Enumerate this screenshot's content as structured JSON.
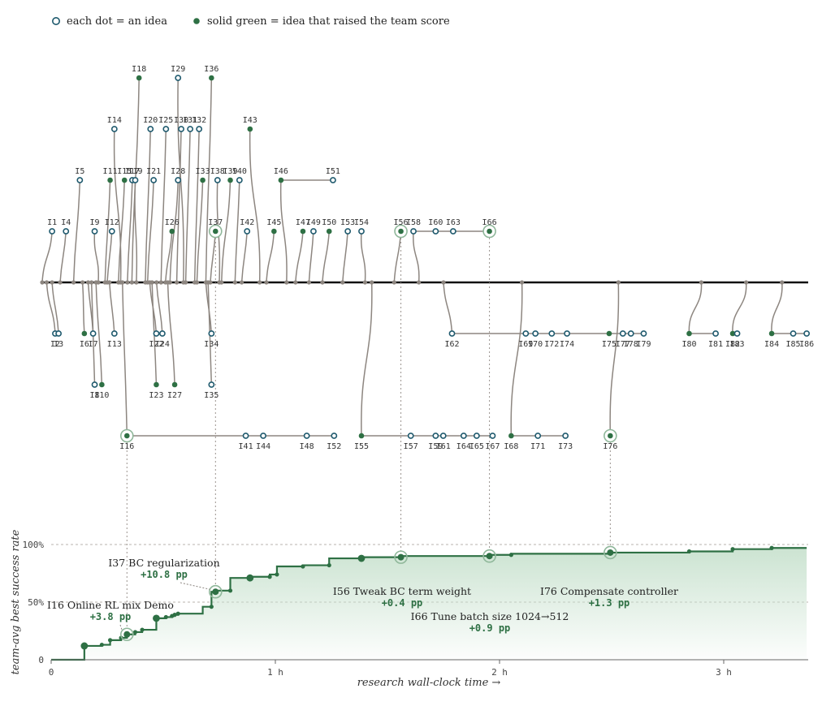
{
  "legend": {
    "hollow_label": "each dot = an idea",
    "solid_label": "solid green = idea that raised the team score"
  },
  "colors": {
    "green": "#2e7044",
    "hollow_stroke": "#1f5a6e",
    "branch": "#8d8680",
    "trunk": "#111111",
    "area_top": "#c9e2cf"
  },
  "chart_data": {
    "type": "line",
    "title": "",
    "xlabel": "research wall-clock time →",
    "ylabel": "team-avg best success rate",
    "xlim": [
      0,
      3.37
    ],
    "ylim": [
      0,
      100
    ],
    "x_unit": "h",
    "x_ticks": [
      {
        "value": 0,
        "label": "0"
      },
      {
        "value": 1,
        "label": "1 h"
      },
      {
        "value": 2,
        "label": "2 h"
      },
      {
        "value": 3,
        "label": "3 h"
      }
    ],
    "y_ticks": [
      {
        "value": 0,
        "label": "0"
      },
      {
        "value": 50,
        "label": "50%"
      },
      {
        "value": 100,
        "label": "100%"
      }
    ],
    "grid": "dotted horizontal at 50% and 100%",
    "legend_position": "top-left",
    "series": [
      {
        "name": "",
        "x": [
          0,
          0.148,
          0.148,
          0.226,
          0.226,
          0.263,
          0.263,
          0.312,
          0.312,
          0.338,
          0.338,
          0.375,
          0.375,
          0.406,
          0.406,
          0.469,
          0.469,
          0.512,
          0.512,
          0.539,
          0.539,
          0.551,
          0.551,
          0.566,
          0.566,
          0.676,
          0.676,
          0.715,
          0.715,
          0.733,
          0.733,
          0.799,
          0.799,
          0.887,
          0.887,
          0.975,
          0.975,
          1.007,
          1.007,
          1.123,
          1.123,
          1.24,
          1.24,
          1.384,
          1.384,
          1.56,
          1.56,
          1.955,
          1.955,
          2.052,
          2.052,
          2.494,
          2.494,
          2.846,
          2.846,
          3.04,
          3.04,
          3.214,
          3.214,
          3.37
        ],
        "y": [
          0,
          0,
          12,
          12,
          13,
          13,
          17,
          17,
          19,
          19,
          22,
          22,
          24,
          24,
          26,
          26,
          36,
          36,
          37,
          37,
          38,
          38,
          39,
          39,
          40,
          40,
          46,
          46,
          59,
          59,
          60,
          60,
          71,
          71,
          72,
          72,
          74,
          74,
          81,
          81,
          82,
          82,
          88,
          88,
          89,
          89,
          90,
          90,
          91,
          91,
          92,
          92,
          93,
          93,
          94,
          94,
          96,
          96,
          97,
          97
        ]
      }
    ],
    "improvement_points": [
      {
        "x": 0.148,
        "y": 12,
        "size": "large"
      },
      {
        "x": 0.226,
        "y": 13,
        "size": "small"
      },
      {
        "x": 0.263,
        "y": 17,
        "size": "small"
      },
      {
        "x": 0.312,
        "y": 19,
        "size": "small"
      },
      {
        "x": 0.375,
        "y": 24,
        "size": "small"
      },
      {
        "x": 0.406,
        "y": 26,
        "size": "small"
      },
      {
        "x": 0.469,
        "y": 36,
        "size": "large"
      },
      {
        "x": 0.512,
        "y": 37,
        "size": "small"
      },
      {
        "x": 0.539,
        "y": 38,
        "size": "small"
      },
      {
        "x": 0.551,
        "y": 39,
        "size": "small"
      },
      {
        "x": 0.566,
        "y": 40,
        "size": "small"
      },
      {
        "x": 0.715,
        "y": 46,
        "size": "small"
      },
      {
        "x": 0.799,
        "y": 60,
        "size": "small"
      },
      {
        "x": 0.887,
        "y": 71,
        "size": "large"
      },
      {
        "x": 0.975,
        "y": 72,
        "size": "small"
      },
      {
        "x": 1.007,
        "y": 74,
        "size": "small"
      },
      {
        "x": 1.123,
        "y": 81,
        "size": "small"
      },
      {
        "x": 1.24,
        "y": 82,
        "size": "small"
      },
      {
        "x": 1.384,
        "y": 88,
        "size": "large"
      },
      {
        "x": 2.052,
        "y": 91,
        "size": "small"
      },
      {
        "x": 2.846,
        "y": 94,
        "size": "small"
      },
      {
        "x": 3.04,
        "y": 96,
        "size": "small"
      },
      {
        "x": 3.214,
        "y": 97,
        "size": "small"
      }
    ],
    "highlights": [
      {
        "idea": "I16",
        "x": 0.338,
        "y": 22,
        "label": "I16 Online RL mix Demo",
        "delta": "+3.8 pp"
      },
      {
        "idea": "I37",
        "x": 0.733,
        "y": 59,
        "label": "I37 BC regularization",
        "delta": "+10.8 pp"
      },
      {
        "idea": "I56",
        "x": 1.56,
        "y": 89,
        "label": "I56 Tweak BC term weight",
        "delta": "+0.4 pp"
      },
      {
        "idea": "I66",
        "x": 1.955,
        "y": 90,
        "label": "I66 Tune batch size 1024→512",
        "delta": "+0.9 pp"
      },
      {
        "idea": "I76",
        "x": 2.494,
        "y": 93,
        "label": "I76 Compensate controller",
        "delta": "+1.3 pp"
      }
    ],
    "idea_tree": {
      "lanes": [
        -4,
        -3,
        -2,
        -1,
        1,
        2,
        3
      ],
      "ideas": [
        {
          "id": "I1",
          "x": 0.004,
          "lane": -1,
          "improved": false,
          "from_x": -0.04
        },
        {
          "id": "I2",
          "x": 0.018,
          "lane": 1,
          "improved": false,
          "from_x": -0.02
        },
        {
          "id": "I3",
          "x": 0.033,
          "lane": 1,
          "improved": false,
          "from_x": 0.004
        },
        {
          "id": "I4",
          "x": 0.066,
          "lane": -1,
          "improved": false,
          "from_x": 0.04
        },
        {
          "id": "I5",
          "x": 0.128,
          "lane": -2,
          "improved": false,
          "from_x": 0.1
        },
        {
          "id": "I6",
          "x": 0.148,
          "lane": 1,
          "improved": true,
          "from_x": 0.14
        },
        {
          "id": "I7",
          "x": 0.187,
          "lane": 1,
          "improved": false,
          "from_x": 0.165
        },
        {
          "id": "I8",
          "x": 0.194,
          "lane": 2,
          "improved": false,
          "from_x": 0.18
        },
        {
          "id": "I9",
          "x": 0.194,
          "lane": -1,
          "improved": false,
          "from_x": 0.21
        },
        {
          "id": "I10",
          "x": 0.226,
          "lane": 2,
          "improved": true,
          "from_x": 0.2
        },
        {
          "id": "I11",
          "x": 0.263,
          "lane": -2,
          "improved": true,
          "from_x": 0.24
        },
        {
          "id": "I12",
          "x": 0.271,
          "lane": -1,
          "improved": false,
          "from_x": 0.25
        },
        {
          "id": "I13",
          "x": 0.282,
          "lane": 1,
          "improved": false,
          "from_x": 0.26
        },
        {
          "id": "I14",
          "x": 0.282,
          "lane": -3,
          "improved": false,
          "from_x": 0.31
        },
        {
          "id": "I15",
          "x": 0.327,
          "lane": -2,
          "improved": true,
          "from_x": 0.3
        },
        {
          "id": "I16",
          "x": 0.338,
          "lane": 3,
          "improved": true,
          "highlight": true,
          "from_x": 0.318
        },
        {
          "id": "I17",
          "x": 0.362,
          "lane": -2,
          "improved": false,
          "from_x": 0.34
        },
        {
          "id": "I18",
          "x": 0.392,
          "lane": -4,
          "improved": true,
          "from_x": 0.36
        },
        {
          "id": "I19",
          "x": 0.375,
          "lane": -2,
          "improved": false,
          "from_x": 0.38
        },
        {
          "id": "I20",
          "x": 0.443,
          "lane": -3,
          "improved": false,
          "from_x": 0.42
        },
        {
          "id": "I21",
          "x": 0.457,
          "lane": -2,
          "improved": false,
          "from_x": 0.43
        },
        {
          "id": "I22",
          "x": 0.469,
          "lane": 1,
          "improved": false,
          "from_x": 0.44
        },
        {
          "id": "I23",
          "x": 0.469,
          "lane": 2,
          "improved": true,
          "from_x": 0.45
        },
        {
          "id": "I24",
          "x": 0.496,
          "lane": 1,
          "improved": false,
          "from_x": 0.47
        },
        {
          "id": "I25",
          "x": 0.512,
          "lane": -3,
          "improved": false,
          "from_x": 0.49
        },
        {
          "id": "I26",
          "x": 0.539,
          "lane": -1,
          "improved": true,
          "from_x": 0.51
        },
        {
          "id": "I27",
          "x": 0.551,
          "lane": 2,
          "improved": true,
          "from_x": 0.52
        },
        {
          "id": "I28",
          "x": 0.566,
          "lane": -2,
          "improved": false,
          "from_x": 0.53
        },
        {
          "id": "I29",
          "x": 0.566,
          "lane": -4,
          "improved": false,
          "from_x": 0.59
        },
        {
          "id": "I30",
          "x": 0.58,
          "lane": -3,
          "improved": false,
          "from_x": 0.56
        },
        {
          "id": "I31",
          "x": 0.62,
          "lane": -3,
          "improved": false,
          "from_x": 0.6
        },
        {
          "id": "I32",
          "x": 0.66,
          "lane": -3,
          "improved": false,
          "from_x": 0.64
        },
        {
          "id": "I33",
          "x": 0.676,
          "lane": -2,
          "improved": true,
          "from_x": 0.65
        },
        {
          "id": "I34",
          "x": 0.715,
          "lane": 1,
          "improved": false,
          "from_x": 0.69
        },
        {
          "id": "I35",
          "x": 0.715,
          "lane": 2,
          "improved": false,
          "from_x": 0.7
        },
        {
          "id": "I36",
          "x": 0.715,
          "lane": -4,
          "improved": true,
          "from_x": 0.69
        },
        {
          "id": "I37",
          "x": 0.733,
          "lane": -1,
          "improved": true,
          "highlight": true,
          "from_x": 0.71
        },
        {
          "id": "I38",
          "x": 0.742,
          "lane": -2,
          "improved": false,
          "from_x": 0.75
        },
        {
          "id": "I39",
          "x": 0.799,
          "lane": -2,
          "improved": true,
          "from_x": 0.76
        },
        {
          "id": "I40",
          "x": 0.84,
          "lane": -2,
          "improved": false,
          "from_x": 0.82
        },
        {
          "id": "I41",
          "x": 0.868,
          "lane": 3,
          "improved": false,
          "from_x": 0.338
        },
        {
          "id": "I42",
          "x": 0.874,
          "lane": -1,
          "improved": false,
          "from_x": 0.85
        },
        {
          "id": "I43",
          "x": 0.887,
          "lane": -3,
          "improved": true,
          "from_x": 0.93
        },
        {
          "id": "I44",
          "x": 0.946,
          "lane": 3,
          "improved": false,
          "from_x": 0.868
        },
        {
          "id": "I45",
          "x": 0.994,
          "lane": -1,
          "improved": true,
          "from_x": 0.96
        },
        {
          "id": "I46",
          "x": 1.025,
          "lane": -2,
          "improved": true,
          "from_x": 1.05
        },
        {
          "id": "I47",
          "x": 1.123,
          "lane": -1,
          "improved": true,
          "from_x": 1.09
        },
        {
          "id": "I48",
          "x": 1.14,
          "lane": 3,
          "improved": false,
          "from_x": 0.946
        },
        {
          "id": "I49",
          "x": 1.17,
          "lane": -1,
          "improved": false,
          "from_x": 1.15
        },
        {
          "id": "I50",
          "x": 1.24,
          "lane": -1,
          "improved": true,
          "from_x": 1.21
        },
        {
          "id": "I51",
          "x": 1.257,
          "lane": -2,
          "improved": false,
          "from_x": 1.025
        },
        {
          "id": "I52",
          "x": 1.262,
          "lane": 3,
          "improved": false,
          "from_x": 1.14
        },
        {
          "id": "I53",
          "x": 1.323,
          "lane": -1,
          "improved": false,
          "from_x": 1.3
        },
        {
          "id": "I54",
          "x": 1.384,
          "lane": -1,
          "improved": false,
          "from_x": 1.4
        },
        {
          "id": "I55",
          "x": 1.384,
          "lane": 3,
          "improved": true,
          "from_x": 1.43
        },
        {
          "id": "I56",
          "x": 1.56,
          "lane": -1,
          "improved": true,
          "highlight": true,
          "from_x": 1.53
        },
        {
          "id": "I57",
          "x": 1.604,
          "lane": 3,
          "improved": false,
          "from_x": 1.384
        },
        {
          "id": "I58",
          "x": 1.616,
          "lane": -1,
          "improved": false,
          "from_x": 1.64
        },
        {
          "id": "I59",
          "x": 1.715,
          "lane": 3,
          "improved": false,
          "from_x": 1.604
        },
        {
          "id": "I60",
          "x": 1.715,
          "lane": -1,
          "improved": false,
          "from_x": 1.616
        },
        {
          "id": "I61",
          "x": 1.749,
          "lane": 3,
          "improved": false,
          "from_x": 1.715
        },
        {
          "id": "I62",
          "x": 1.788,
          "lane": 1,
          "improved": false,
          "from_x": 1.75
        },
        {
          "id": "I63",
          "x": 1.793,
          "lane": -1,
          "improved": false,
          "from_x": 1.715
        },
        {
          "id": "I64",
          "x": 1.84,
          "lane": 3,
          "improved": false,
          "from_x": 1.749
        },
        {
          "id": "I65",
          "x": 1.898,
          "lane": 3,
          "improved": false,
          "from_x": 1.84
        },
        {
          "id": "I66",
          "x": 1.955,
          "lane": -1,
          "improved": true,
          "highlight": true,
          "from_x": 1.793
        },
        {
          "id": "I67",
          "x": 1.969,
          "lane": 3,
          "improved": false,
          "from_x": 1.898
        },
        {
          "id": "I68",
          "x": 2.052,
          "lane": 3,
          "improved": true,
          "from_x": 2.1
        },
        {
          "id": "I69",
          "x": 2.117,
          "lane": 1,
          "improved": false,
          "from_x": 1.788
        },
        {
          "id": "I70",
          "x": 2.16,
          "lane": 1,
          "improved": false,
          "from_x": 2.117
        },
        {
          "id": "I71",
          "x": 2.171,
          "lane": 3,
          "improved": false,
          "from_x": 2.052
        },
        {
          "id": "I72",
          "x": 2.233,
          "lane": 1,
          "improved": false,
          "from_x": 2.16
        },
        {
          "id": "I73",
          "x": 2.294,
          "lane": 3,
          "improved": false,
          "from_x": 2.171
        },
        {
          "id": "I74",
          "x": 2.301,
          "lane": 1,
          "improved": false,
          "from_x": 2.233
        },
        {
          "id": "I75",
          "x": 2.489,
          "lane": 1,
          "improved": true,
          "from_x": 2.301
        },
        {
          "id": "I76",
          "x": 2.494,
          "lane": 3,
          "improved": true,
          "highlight": true,
          "from_x": 2.53
        },
        {
          "id": "I77",
          "x": 2.55,
          "lane": 1,
          "improved": false,
          "from_x": 2.489
        },
        {
          "id": "I78",
          "x": 2.586,
          "lane": 1,
          "improved": false,
          "from_x": 2.55
        },
        {
          "id": "I79",
          "x": 2.643,
          "lane": 1,
          "improved": false,
          "from_x": 2.586
        },
        {
          "id": "I80",
          "x": 2.846,
          "lane": 1,
          "improved": true,
          "from_x": 2.9
        },
        {
          "id": "I81",
          "x": 2.964,
          "lane": 1,
          "improved": false,
          "from_x": 2.846
        },
        {
          "id": "I82",
          "x": 3.04,
          "lane": 1,
          "improved": true,
          "from_x": 3.1
        },
        {
          "id": "I83",
          "x": 3.06,
          "lane": 1,
          "improved": false,
          "from_x": 3.04
        },
        {
          "id": "I84",
          "x": 3.214,
          "lane": 1,
          "improved": true,
          "from_x": 3.26
        },
        {
          "id": "I85",
          "x": 3.31,
          "lane": 1,
          "improved": false,
          "from_x": 3.214
        },
        {
          "id": "I86",
          "x": 3.37,
          "lane": 1,
          "improved": false,
          "from_x": 3.31
        }
      ]
    }
  }
}
